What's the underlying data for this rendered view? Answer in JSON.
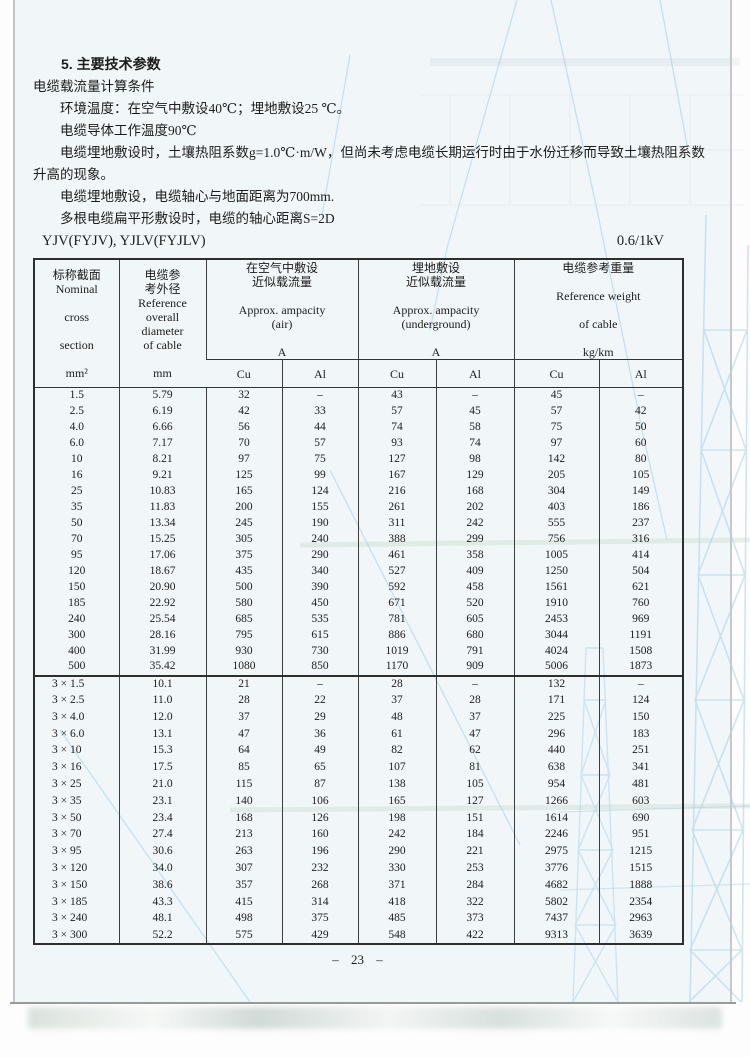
{
  "doc": {
    "section_title": "5. 主要技术参数",
    "conditions_title": "电缆载流量计算条件",
    "paragraphs": [
      "环境温度：在空气中敷设40℃；埋地敷设25 ℃。",
      "电缆导体工作温度90℃",
      "电缆埋地敷设时，土壤热阻系数g=1.0℃·m/W，但尚未考虑电缆长期运行时由于水份迁移而导致土壤热阻系数升高的现象。",
      "电缆埋地敷设，电缆轴心与地面距离为700mm.",
      "多根电缆扁平形敷设时，电缆的轴心距离S=2D"
    ],
    "model_label": "YJV(FYJV), YJLV(FYJLV)",
    "voltage_label": "0.6/1kV",
    "page_number": "– 23 –"
  },
  "table": {
    "headers": {
      "nominal": "标称截面\nNominal\n\ncross\n\nsection\n\nmm²",
      "diameter": "电缆参\n考外径\nReference\noverall\ndiameter\nof cable\n\nmm",
      "air": "在空气中敷设\n近似载流量\n\nApprox. ampacity\n(air)\n\nA",
      "underground": "埋地敷设\n近似载流量\n\nApprox. ampacity\n(underground)\n\nA",
      "weight": "电缆参考重量\n\nReference weight\n\nof cable\n\nkg/km",
      "cu": "Cu",
      "al": "Al"
    },
    "single_core_rows": [
      [
        "1.5",
        "5.79",
        "32",
        "–",
        "43",
        "–",
        "45",
        "–"
      ],
      [
        "2.5",
        "6.19",
        "42",
        "33",
        "57",
        "45",
        "57",
        "42"
      ],
      [
        "4.0",
        "6.66",
        "56",
        "44",
        "74",
        "58",
        "75",
        "50"
      ],
      [
        "6.0",
        "7.17",
        "70",
        "57",
        "93",
        "74",
        "97",
        "60"
      ],
      [
        "10",
        "8.21",
        "97",
        "75",
        "127",
        "98",
        "142",
        "80"
      ],
      [
        "16",
        "9.21",
        "125",
        "99",
        "167",
        "129",
        "205",
        "105"
      ],
      [
        "25",
        "10.83",
        "165",
        "124",
        "216",
        "168",
        "304",
        "149"
      ],
      [
        "35",
        "11.83",
        "200",
        "155",
        "261",
        "202",
        "403",
        "186"
      ],
      [
        "50",
        "13.34",
        "245",
        "190",
        "311",
        "242",
        "555",
        "237"
      ],
      [
        "70",
        "15.25",
        "305",
        "240",
        "388",
        "299",
        "756",
        "316"
      ],
      [
        "95",
        "17.06",
        "375",
        "290",
        "461",
        "358",
        "1005",
        "414"
      ],
      [
        "120",
        "18.67",
        "435",
        "340",
        "527",
        "409",
        "1250",
        "504"
      ],
      [
        "150",
        "20.90",
        "500",
        "390",
        "592",
        "458",
        "1561",
        "621"
      ],
      [
        "185",
        "22.92",
        "580",
        "450",
        "671",
        "520",
        "1910",
        "760"
      ],
      [
        "240",
        "25.54",
        "685",
        "535",
        "781",
        "605",
        "2453",
        "969"
      ],
      [
        "300",
        "28.16",
        "795",
        "615",
        "886",
        "680",
        "3044",
        "1191"
      ],
      [
        "400",
        "31.99",
        "930",
        "730",
        "1019",
        "791",
        "4024",
        "1508"
      ],
      [
        "500",
        "35.42",
        "1080",
        "850",
        "1170",
        "909",
        "5006",
        "1873"
      ]
    ],
    "three_core_rows": [
      [
        "3 × 1.5",
        "10.1",
        "21",
        "–",
        "28",
        "–",
        "132",
        "–"
      ],
      [
        "3 × 2.5",
        "11.0",
        "28",
        "22",
        "37",
        "28",
        "171",
        "124"
      ],
      [
        "3 × 4.0",
        "12.0",
        "37",
        "29",
        "48",
        "37",
        "225",
        "150"
      ],
      [
        "3 × 6.0",
        "13.1",
        "47",
        "36",
        "61",
        "47",
        "296",
        "183"
      ],
      [
        "3 × 10",
        "15.3",
        "64",
        "49",
        "82",
        "62",
        "440",
        "251"
      ],
      [
        "3 × 16",
        "17.5",
        "85",
        "65",
        "107",
        "81",
        "638",
        "341"
      ],
      [
        "3 × 25",
        "21.0",
        "115",
        "87",
        "138",
        "105",
        "954",
        "481"
      ],
      [
        "3 × 35",
        "23.1",
        "140",
        "106",
        "165",
        "127",
        "1266",
        "603"
      ],
      [
        "3 × 50",
        "23.4",
        "168",
        "126",
        "198",
        "151",
        "1614",
        "690"
      ],
      [
        "3 × 70",
        "27.4",
        "213",
        "160",
        "242",
        "184",
        "2246",
        "951"
      ],
      [
        "3 × 95",
        "30.6",
        "263",
        "196",
        "290",
        "221",
        "2975",
        "1215"
      ],
      [
        "3 × 120",
        "34.0",
        "307",
        "232",
        "330",
        "253",
        "3776",
        "1515"
      ],
      [
        "3 × 150",
        "38.6",
        "357",
        "268",
        "371",
        "284",
        "4682",
        "1888"
      ],
      [
        "3 × 185",
        "43.3",
        "415",
        "314",
        "418",
        "322",
        "5802",
        "2354"
      ],
      [
        "3 × 240",
        "48.1",
        "498",
        "375",
        "485",
        "373",
        "7437",
        "2963"
      ],
      [
        "3 × 300",
        "52.2",
        "575",
        "429",
        "548",
        "422",
        "9313",
        "3639"
      ]
    ]
  },
  "colors": {
    "paper": "#f1f6f8",
    "ink": "#1c1c1c",
    "watermark_blue": "#a6d3e9",
    "border": "#2e2e2e"
  }
}
